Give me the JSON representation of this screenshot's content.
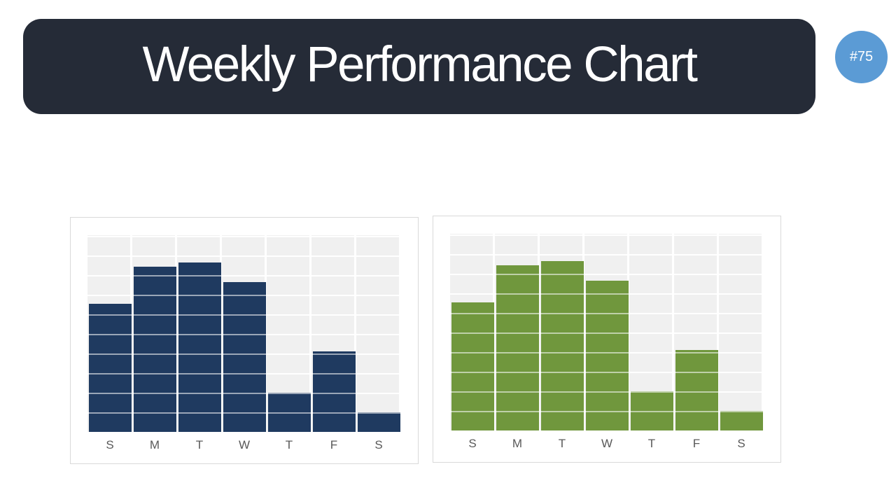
{
  "header": {
    "title": "Weekly Performance Chart",
    "background": "#252B37",
    "text_color": "#FFFFFF"
  },
  "badge": {
    "label": "#75",
    "background": "#5B9BD5",
    "text_color": "#FFFFFF"
  },
  "charts_section": {
    "panel_background": "#FFFFFF",
    "panel_border_color": "#D9D9D9",
    "plot_background": "#F0F0F0",
    "gridline_color": "#FFFFFF",
    "axis_label_color": "#595959"
  },
  "chart_data": [
    {
      "type": "bar",
      "name": "weekly-performance-blue",
      "title": "",
      "xlabel": "",
      "ylabel": "",
      "categories": [
        "S",
        "M",
        "T",
        "W",
        "T",
        "F",
        "S"
      ],
      "values": [
        6.5,
        8.4,
        8.6,
        7.6,
        2,
        4.1,
        1
      ],
      "ylim": [
        0,
        10
      ],
      "grid": "on",
      "legend": "none",
      "bar_color": "#1F3A60"
    },
    {
      "type": "bar",
      "name": "weekly-performance-green",
      "title": "",
      "xlabel": "",
      "ylabel": "",
      "categories": [
        "S",
        "M",
        "T",
        "W",
        "T",
        "F",
        "S"
      ],
      "values": [
        6.5,
        8.4,
        8.6,
        7.6,
        2,
        4.1,
        1
      ],
      "ylim": [
        0,
        10
      ],
      "grid": "on",
      "legend": "none",
      "bar_color": "#70973D"
    }
  ]
}
